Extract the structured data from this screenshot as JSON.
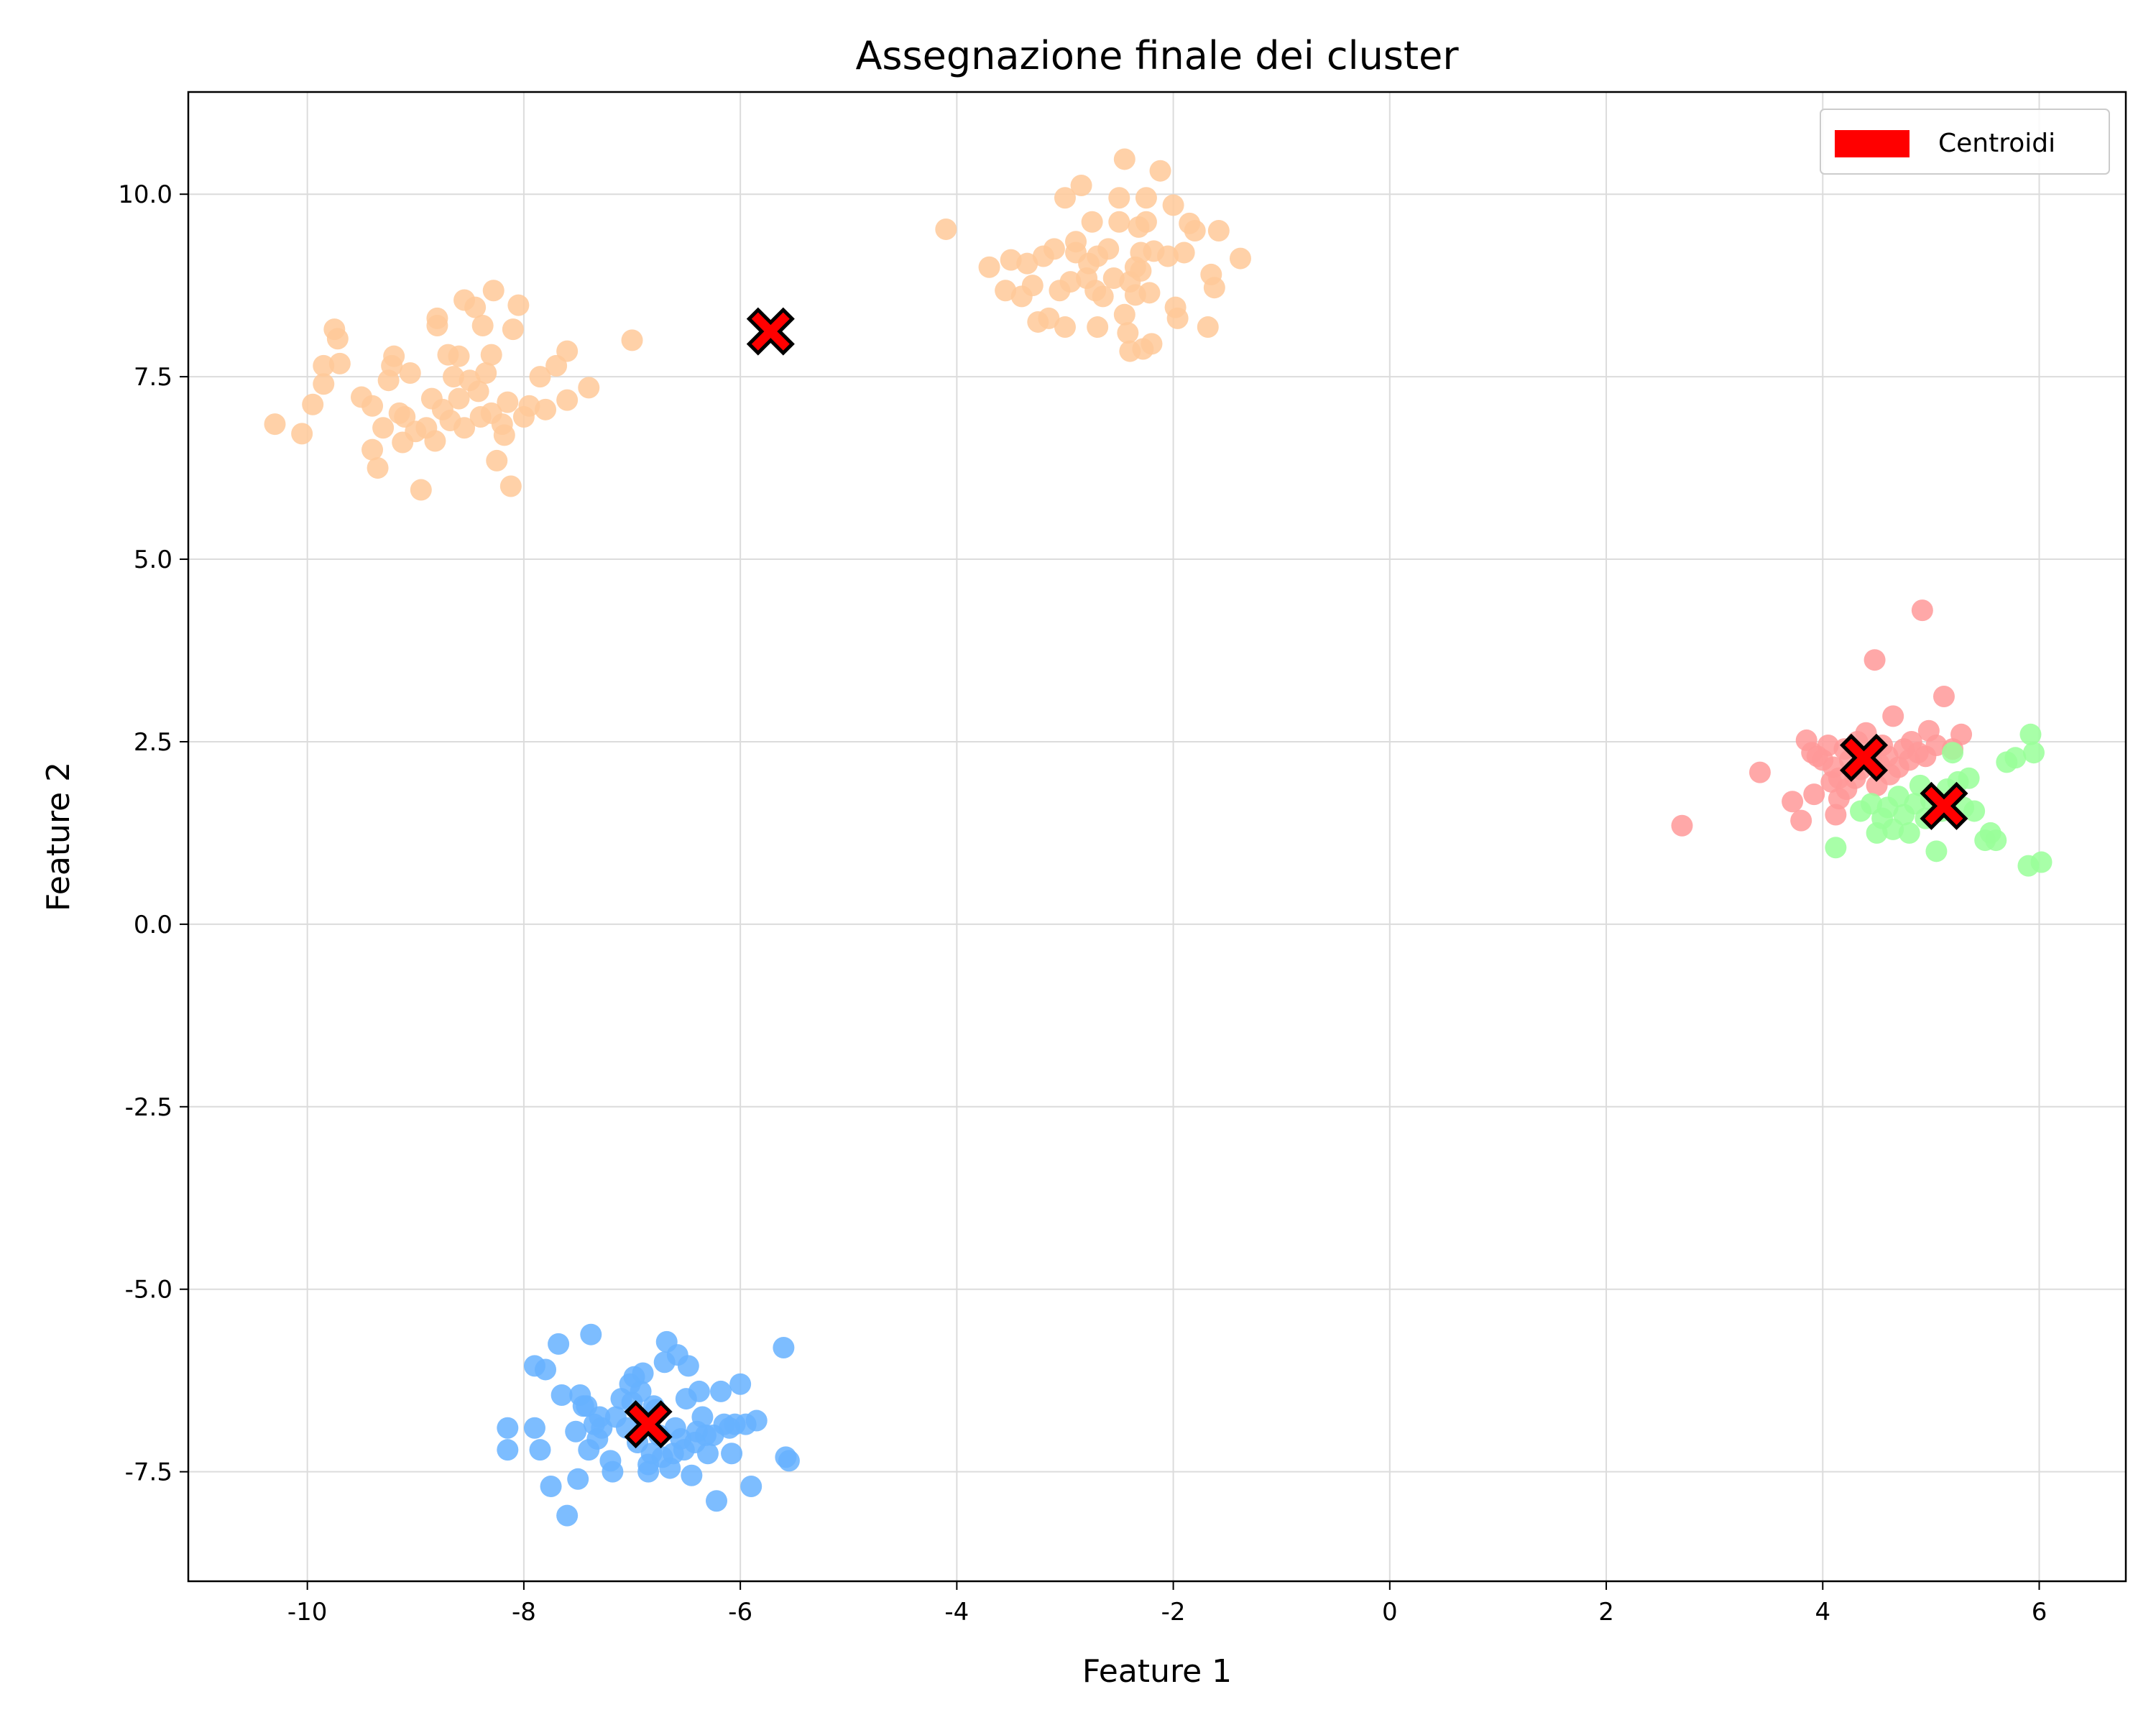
{
  "chart_data": {
    "type": "scatter",
    "title": "Assegnazione finale dei cluster",
    "xlabel": "Feature 1",
    "ylabel": "Feature 2",
    "xlim": [
      -11.1,
      6.8
    ],
    "ylim": [
      -9.0,
      11.4
    ],
    "x_ticks": [
      -10,
      -8,
      -6,
      -4,
      -2,
      0,
      2,
      4,
      6
    ],
    "y_ticks": [
      10.0,
      7.5,
      5.0,
      2.5,
      0.0,
      -2.5,
      -5.0,
      -7.5
    ],
    "x_tick_labels": [
      "-10",
      "-8",
      "-6",
      "-4",
      "-2",
      "0",
      "2",
      "4",
      "6"
    ],
    "y_tick_labels": [
      "10.0",
      "7.5",
      "5.0",
      "2.5",
      "0.0",
      "-2.5",
      "-5.0",
      "-7.5"
    ],
    "grid": true,
    "legend": {
      "position": "top-right",
      "entries": [
        {
          "label": "Centroidi",
          "color": "#ff0000"
        }
      ]
    },
    "colors": {
      "orange": "#ffc999",
      "blue": "#66b2ff",
      "pink": "#ff9999",
      "green": "#99ff99",
      "centroid": "#ff0000"
    },
    "series": [
      {
        "color_key": "orange",
        "points": [
          [
            -10.3,
            6.85
          ],
          [
            -10.05,
            6.72
          ],
          [
            -9.95,
            7.12
          ],
          [
            -9.85,
            7.4
          ],
          [
            -9.85,
            7.65
          ],
          [
            -9.7,
            7.68
          ],
          [
            -9.75,
            8.15
          ],
          [
            -9.72,
            8.02
          ],
          [
            -9.5,
            7.22
          ],
          [
            -9.4,
            7.1
          ],
          [
            -9.4,
            6.5
          ],
          [
            -9.35,
            6.25
          ],
          [
            -9.3,
            6.8
          ],
          [
            -9.25,
            7.45
          ],
          [
            -9.22,
            7.65
          ],
          [
            -9.2,
            7.78
          ],
          [
            -9.15,
            7.0
          ],
          [
            -9.12,
            6.6
          ],
          [
            -9.1,
            6.95
          ],
          [
            -9.05,
            7.55
          ],
          [
            -9.0,
            6.75
          ],
          [
            -8.95,
            5.95
          ],
          [
            -8.9,
            6.8
          ],
          [
            -8.85,
            7.2
          ],
          [
            -8.82,
            6.62
          ],
          [
            -8.8,
            8.3
          ],
          [
            -8.8,
            8.2
          ],
          [
            -8.75,
            7.05
          ],
          [
            -8.7,
            7.8
          ],
          [
            -8.68,
            6.9
          ],
          [
            -8.65,
            7.5
          ],
          [
            -8.6,
            7.2
          ],
          [
            -8.6,
            7.78
          ],
          [
            -8.55,
            8.55
          ],
          [
            -8.55,
            6.8
          ],
          [
            -8.5,
            7.45
          ],
          [
            -8.45,
            8.45
          ],
          [
            -8.42,
            7.3
          ],
          [
            -8.4,
            6.95
          ],
          [
            -8.38,
            8.2
          ],
          [
            -8.35,
            7.55
          ],
          [
            -8.3,
            7.8
          ],
          [
            -8.3,
            7.0
          ],
          [
            -8.28,
            8.68
          ],
          [
            -8.25,
            6.35
          ],
          [
            -8.2,
            6.85
          ],
          [
            -8.18,
            6.7
          ],
          [
            -8.15,
            7.15
          ],
          [
            -8.12,
            6.0
          ],
          [
            -8.1,
            8.15
          ],
          [
            -8.05,
            8.48
          ],
          [
            -8.0,
            6.95
          ],
          [
            -7.95,
            7.1
          ],
          [
            -7.85,
            7.5
          ],
          [
            -7.8,
            7.05
          ],
          [
            -7.7,
            7.65
          ],
          [
            -7.6,
            7.85
          ],
          [
            -7.6,
            7.18
          ],
          [
            -7.4,
            7.35
          ],
          [
            -7.0,
            8.0
          ],
          [
            -4.1,
            9.52
          ],
          [
            -3.7,
            9.0
          ],
          [
            -3.55,
            8.68
          ],
          [
            -3.5,
            9.1
          ],
          [
            -3.4,
            8.6
          ],
          [
            -3.35,
            9.05
          ],
          [
            -3.3,
            8.75
          ],
          [
            -3.25,
            8.25
          ],
          [
            -3.2,
            9.15
          ],
          [
            -3.15,
            8.3
          ],
          [
            -3.1,
            9.25
          ],
          [
            -3.05,
            8.68
          ],
          [
            -3.0,
            9.95
          ],
          [
            -3.0,
            8.18
          ],
          [
            -2.95,
            8.8
          ],
          [
            -2.9,
            9.35
          ],
          [
            -2.9,
            9.2
          ],
          [
            -2.85,
            10.12
          ],
          [
            -2.8,
            8.85
          ],
          [
            -2.78,
            9.05
          ],
          [
            -2.75,
            9.62
          ],
          [
            -2.72,
            8.68
          ],
          [
            -2.7,
            9.15
          ],
          [
            -2.7,
            8.18
          ],
          [
            -2.65,
            8.6
          ],
          [
            -2.6,
            9.25
          ],
          [
            -2.55,
            8.85
          ],
          [
            -2.5,
            9.62
          ],
          [
            -2.5,
            9.95
          ],
          [
            -2.45,
            10.48
          ],
          [
            -2.45,
            8.35
          ],
          [
            -2.42,
            8.1
          ],
          [
            -2.4,
            8.8
          ],
          [
            -2.4,
            7.85
          ],
          [
            -2.35,
            9.0
          ],
          [
            -2.35,
            8.62
          ],
          [
            -2.32,
            9.55
          ],
          [
            -2.3,
            9.2
          ],
          [
            -2.3,
            8.95
          ],
          [
            -2.28,
            7.88
          ],
          [
            -2.25,
            9.95
          ],
          [
            -2.25,
            9.62
          ],
          [
            -2.22,
            8.65
          ],
          [
            -2.2,
            7.95
          ],
          [
            -2.18,
            9.22
          ],
          [
            -2.12,
            10.32
          ],
          [
            -2.05,
            9.15
          ],
          [
            -2.0,
            9.85
          ],
          [
            -1.98,
            8.45
          ],
          [
            -1.96,
            8.3
          ],
          [
            -1.9,
            9.2
          ],
          [
            -1.85,
            9.6
          ],
          [
            -1.8,
            9.5
          ],
          [
            -1.68,
            8.18
          ],
          [
            -1.65,
            8.9
          ],
          [
            -1.62,
            8.72
          ],
          [
            -1.58,
            9.5
          ],
          [
            -1.38,
            9.12
          ]
        ]
      },
      {
        "color_key": "blue",
        "points": [
          [
            -8.15,
            -6.9
          ],
          [
            -8.15,
            -7.2
          ],
          [
            -7.9,
            -6.05
          ],
          [
            -7.9,
            -6.9
          ],
          [
            -7.85,
            -7.2
          ],
          [
            -7.8,
            -6.1
          ],
          [
            -7.75,
            -7.7
          ],
          [
            -7.68,
            -5.75
          ],
          [
            -7.65,
            -6.45
          ],
          [
            -7.6,
            -8.1
          ],
          [
            -7.52,
            -6.95
          ],
          [
            -7.5,
            -7.6
          ],
          [
            -7.48,
            -6.45
          ],
          [
            -7.45,
            -6.6
          ],
          [
            -7.42,
            -6.6
          ],
          [
            -7.4,
            -7.2
          ],
          [
            -7.38,
            -5.62
          ],
          [
            -7.35,
            -6.85
          ],
          [
            -7.32,
            -7.05
          ],
          [
            -7.3,
            -6.75
          ],
          [
            -7.28,
            -6.9
          ],
          [
            -7.2,
            -7.35
          ],
          [
            -7.18,
            -7.5
          ],
          [
            -7.15,
            -6.75
          ],
          [
            -7.1,
            -6.5
          ],
          [
            -7.05,
            -6.9
          ],
          [
            -7.02,
            -6.3
          ],
          [
            -7.0,
            -6.55
          ],
          [
            -6.98,
            -6.2
          ],
          [
            -6.95,
            -7.1
          ],
          [
            -6.92,
            -6.4
          ],
          [
            -6.9,
            -6.15
          ],
          [
            -6.88,
            -6.8
          ],
          [
            -6.85,
            -7.5
          ],
          [
            -6.85,
            -7.4
          ],
          [
            -6.82,
            -7.25
          ],
          [
            -6.8,
            -6.6
          ],
          [
            -6.78,
            -6.65
          ],
          [
            -6.75,
            -7.0
          ],
          [
            -6.72,
            -7.3
          ],
          [
            -6.7,
            -6.0
          ],
          [
            -6.68,
            -5.72
          ],
          [
            -6.65,
            -7.45
          ],
          [
            -6.62,
            -7.25
          ],
          [
            -6.6,
            -6.9
          ],
          [
            -6.58,
            -5.9
          ],
          [
            -6.55,
            -7.05
          ],
          [
            -6.52,
            -7.2
          ],
          [
            -6.5,
            -6.5
          ],
          [
            -6.48,
            -6.05
          ],
          [
            -6.45,
            -7.55
          ],
          [
            -6.42,
            -7.1
          ],
          [
            -6.4,
            -6.95
          ],
          [
            -6.38,
            -6.4
          ],
          [
            -6.35,
            -6.75
          ],
          [
            -6.32,
            -7.0
          ],
          [
            -6.3,
            -7.25
          ],
          [
            -6.25,
            -7.0
          ],
          [
            -6.22,
            -7.9
          ],
          [
            -6.18,
            -6.4
          ],
          [
            -6.15,
            -6.85
          ],
          [
            -6.1,
            -6.9
          ],
          [
            -6.08,
            -7.25
          ],
          [
            -6.05,
            -6.85
          ],
          [
            -6.0,
            -6.3
          ],
          [
            -5.95,
            -6.85
          ],
          [
            -5.9,
            -7.7
          ],
          [
            -5.85,
            -6.8
          ],
          [
            -5.6,
            -5.8
          ],
          [
            -5.58,
            -7.3
          ],
          [
            -5.55,
            -7.35
          ]
        ]
      },
      {
        "color_key": "pink",
        "points": [
          [
            2.7,
            1.35
          ],
          [
            3.42,
            2.08
          ],
          [
            3.72,
            1.68
          ],
          [
            3.8,
            1.42
          ],
          [
            3.85,
            2.52
          ],
          [
            3.9,
            2.35
          ],
          [
            3.92,
            1.78
          ],
          [
            3.95,
            2.3
          ],
          [
            4.0,
            2.25
          ],
          [
            4.05,
            2.45
          ],
          [
            4.08,
            1.95
          ],
          [
            4.1,
            2.15
          ],
          [
            4.12,
            1.5
          ],
          [
            4.15,
            2.0
          ],
          [
            4.15,
            1.72
          ],
          [
            4.2,
            2.4
          ],
          [
            4.22,
            1.85
          ],
          [
            4.25,
            2.25
          ],
          [
            4.3,
            2.0
          ],
          [
            4.32,
            2.5
          ],
          [
            4.35,
            2.12
          ],
          [
            4.4,
            2.62
          ],
          [
            4.45,
            2.28
          ],
          [
            4.48,
            3.62
          ],
          [
            4.5,
            1.9
          ],
          [
            4.52,
            2.2
          ],
          [
            4.55,
            2.45
          ],
          [
            4.6,
            2.3
          ],
          [
            4.62,
            2.05
          ],
          [
            4.65,
            2.85
          ],
          [
            4.7,
            2.15
          ],
          [
            4.75,
            2.4
          ],
          [
            4.8,
            2.25
          ],
          [
            4.82,
            2.5
          ],
          [
            4.88,
            2.35
          ],
          [
            4.92,
            4.3
          ],
          [
            4.95,
            2.3
          ],
          [
            4.98,
            2.65
          ],
          [
            5.05,
            2.45
          ],
          [
            5.12,
            3.12
          ],
          [
            5.2,
            2.4
          ],
          [
            5.28,
            2.6
          ]
        ]
      },
      {
        "color_key": "green",
        "points": [
          [
            4.12,
            1.05
          ],
          [
            4.35,
            1.55
          ],
          [
            4.45,
            1.65
          ],
          [
            4.5,
            1.25
          ],
          [
            4.55,
            1.45
          ],
          [
            4.6,
            1.6
          ],
          [
            4.65,
            1.3
          ],
          [
            4.7,
            1.75
          ],
          [
            4.75,
            1.5
          ],
          [
            4.8,
            1.25
          ],
          [
            4.85,
            1.65
          ],
          [
            4.9,
            1.9
          ],
          [
            4.95,
            1.45
          ],
          [
            5.0,
            1.7
          ],
          [
            5.05,
            1.0
          ],
          [
            5.1,
            1.55
          ],
          [
            5.15,
            1.85
          ],
          [
            5.2,
            2.35
          ],
          [
            5.25,
            1.95
          ],
          [
            5.3,
            1.6
          ],
          [
            5.35,
            2.0
          ],
          [
            5.4,
            1.55
          ],
          [
            5.5,
            1.15
          ],
          [
            5.55,
            1.25
          ],
          [
            5.6,
            1.15
          ],
          [
            5.7,
            2.22
          ],
          [
            5.78,
            2.28
          ],
          [
            5.9,
            0.8
          ],
          [
            5.92,
            2.6
          ],
          [
            5.95,
            2.35
          ],
          [
            6.02,
            0.85
          ]
        ]
      }
    ],
    "centroids": [
      [
        -5.72,
        8.12
      ],
      [
        -6.85,
        -6.85
      ],
      [
        4.38,
        2.28
      ],
      [
        5.12,
        1.62
      ]
    ]
  }
}
